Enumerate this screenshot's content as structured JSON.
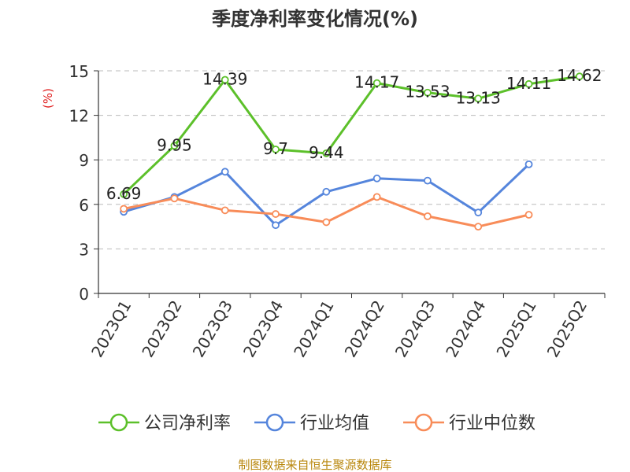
{
  "chart_data": {
    "type": "line",
    "title": "季度净利率变化情况(%)",
    "ylabel": "(%)",
    "xlabel": "",
    "categories": [
      "2023Q1",
      "2023Q2",
      "2023Q3",
      "2023Q4",
      "2024Q1",
      "2024Q2",
      "2024Q3",
      "2024Q4",
      "2025Q1",
      "2025Q2"
    ],
    "ylim": [
      0,
      15
    ],
    "yticks": [
      0,
      3,
      6,
      9,
      12,
      15
    ],
    "grid": true,
    "legend_position": "bottom",
    "series": [
      {
        "name": "公司净利率",
        "color": "#5cc02a",
        "values": [
          6.69,
          9.95,
          14.39,
          9.7,
          9.44,
          14.17,
          13.53,
          13.13,
          14.11,
          14.62
        ],
        "data_labels": [
          "6.69",
          "9.95",
          "14.39",
          "9.7",
          "9.44",
          "14.17",
          "13.53",
          "13.13",
          "14.11",
          "14.62"
        ]
      },
      {
        "name": "行业均值",
        "color": "#5585dc",
        "values": [
          5.5,
          6.5,
          8.2,
          4.6,
          6.85,
          7.75,
          7.6,
          5.45,
          8.7,
          null
        ]
      },
      {
        "name": "行业中位数",
        "color": "#f88c59",
        "values": [
          5.7,
          6.4,
          5.6,
          5.35,
          4.8,
          6.5,
          5.2,
          4.5,
          5.3,
          null
        ]
      }
    ]
  },
  "source": "制图数据来自恒生聚源数据库",
  "colors": {
    "title": "#333333",
    "ylabel": "#e02020",
    "axis": "#333333",
    "grid": "#bbbbbb",
    "source": "#b8860b"
  }
}
